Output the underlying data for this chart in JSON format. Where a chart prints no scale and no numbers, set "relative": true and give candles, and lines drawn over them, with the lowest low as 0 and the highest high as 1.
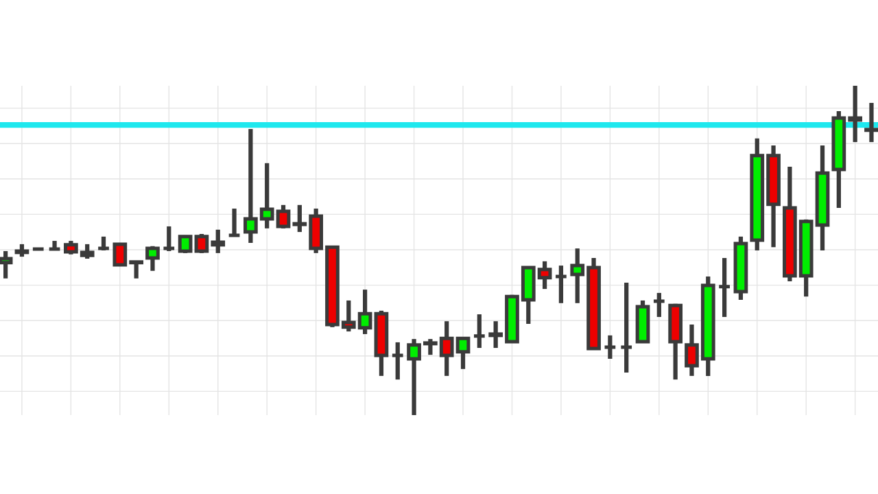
{
  "chart_data": {
    "type": "candlestick",
    "relative": true,
    "grid": true,
    "categories": [
      null,
      null,
      null,
      null,
      null,
      null,
      null,
      null,
      null,
      null,
      null,
      null,
      null,
      null,
      null,
      null,
      null,
      null,
      null,
      null,
      null,
      null,
      null,
      null,
      null,
      null,
      null,
      null,
      null,
      null,
      null,
      null,
      null,
      null,
      null,
      null,
      null,
      null,
      null,
      null,
      null,
      null,
      null,
      null,
      null,
      null,
      null,
      null,
      null,
      null,
      null,
      null,
      null,
      null
    ],
    "ohlc": [
      [
        0.463,
        0.498,
        0.415,
        0.475
      ],
      [
        0.494,
        0.519,
        0.481,
        0.498
      ],
      [
        0.504,
        0.506,
        0.502,
        0.504
      ],
      [
        0.504,
        0.529,
        0.5,
        0.504
      ],
      [
        0.517,
        0.529,
        0.488,
        0.496
      ],
      [
        0.485,
        0.519,
        0.475,
        0.494
      ],
      [
        0.506,
        0.542,
        0.5,
        0.506
      ],
      [
        0.519,
        0.523,
        0.452,
        0.456
      ],
      [
        0.465,
        0.467,
        0.415,
        0.463
      ],
      [
        0.477,
        0.513,
        0.438,
        0.506
      ],
      [
        0.506,
        0.573,
        0.498,
        0.506
      ],
      [
        0.498,
        0.546,
        0.492,
        0.542
      ],
      [
        0.542,
        0.55,
        0.492,
        0.498
      ],
      [
        0.517,
        0.563,
        0.492,
        0.525
      ],
      [
        0.546,
        0.627,
        0.542,
        0.546
      ],
      [
        0.556,
        0.869,
        0.523,
        0.596
      ],
      [
        0.596,
        0.765,
        0.567,
        0.625
      ],
      [
        0.619,
        0.638,
        0.567,
        0.573
      ],
      [
        0.581,
        0.638,
        0.556,
        0.579
      ],
      [
        0.604,
        0.627,
        0.492,
        0.506
      ],
      [
        0.51,
        0.513,
        0.267,
        0.275
      ],
      [
        0.281,
        0.348,
        0.254,
        0.267
      ],
      [
        0.265,
        0.381,
        0.246,
        0.308
      ],
      [
        0.308,
        0.317,
        0.119,
        0.181
      ],
      [
        0.181,
        0.221,
        0.108,
        0.181
      ],
      [
        0.171,
        0.231,
        0.0,
        0.213
      ],
      [
        0.217,
        0.231,
        0.183,
        0.219
      ],
      [
        0.233,
        0.285,
        0.119,
        0.181
      ],
      [
        0.192,
        0.235,
        0.14,
        0.233
      ],
      [
        0.24,
        0.306,
        0.204,
        0.24
      ],
      [
        0.246,
        0.285,
        0.204,
        0.242
      ],
      [
        0.223,
        0.365,
        0.219,
        0.36
      ],
      [
        0.35,
        0.452,
        0.277,
        0.448
      ],
      [
        0.442,
        0.467,
        0.383,
        0.417
      ],
      [
        0.421,
        0.454,
        0.34,
        0.421
      ],
      [
        0.427,
        0.506,
        0.34,
        0.454
      ],
      [
        0.448,
        0.477,
        0.198,
        0.202
      ],
      [
        0.206,
        0.242,
        0.171,
        0.206
      ],
      [
        0.206,
        0.402,
        0.129,
        0.206
      ],
      [
        0.223,
        0.348,
        0.219,
        0.329
      ],
      [
        0.346,
        0.371,
        0.298,
        0.346
      ],
      [
        0.333,
        0.338,
        0.108,
        0.223
      ],
      [
        0.213,
        0.275,
        0.119,
        0.15
      ],
      [
        0.171,
        0.421,
        0.119,
        0.394
      ],
      [
        0.39,
        0.477,
        0.298,
        0.39
      ],
      [
        0.375,
        0.542,
        0.35,
        0.521
      ],
      [
        0.531,
        0.84,
        0.5,
        0.788
      ],
      [
        0.788,
        0.819,
        0.51,
        0.64
      ],
      [
        0.629,
        0.754,
        0.406,
        0.423
      ],
      [
        0.423,
        0.594,
        0.36,
        0.588
      ],
      [
        0.577,
        0.819,
        0.5,
        0.735
      ],
      [
        0.746,
        0.923,
        0.629,
        0.902
      ],
      [
        0.902,
        1.0,
        0.829,
        0.896
      ],
      [
        0.867,
        0.948,
        0.829,
        0.865
      ]
    ],
    "colors": [
      "#00ee00",
      "#00ee00",
      "#3a3a3a",
      "#3a3a3a",
      "#ee0000",
      "#00ee00",
      "#3a3a3a",
      "#ee0000",
      "#ee0000",
      "#00ee00",
      "#3a3a3a",
      "#00ee00",
      "#ee0000",
      "#00ee00",
      "#3a3a3a",
      "#00ee00",
      "#00ee00",
      "#ee0000",
      "#ee0000",
      "#ee0000",
      "#ee0000",
      "#ee0000",
      "#00ee00",
      "#ee0000",
      "#3a3a3a",
      "#00ee00",
      "#00ee00",
      "#ee0000",
      "#00ee00",
      "#3a3a3a",
      "#ee0000",
      "#00ee00",
      "#00ee00",
      "#ee0000",
      "#3a3a3a",
      "#00ee00",
      "#ee0000",
      "#3a3a3a",
      "#3a3a3a",
      "#00ee00",
      "#3a3a3a",
      "#ee0000",
      "#ee0000",
      "#00ee00",
      "#3a3a3a",
      "#00ee00",
      "#00ee00",
      "#ee0000",
      "#ee0000",
      "#00ee00",
      "#00ee00",
      "#00ee00",
      "#ee0000",
      "#ee0000"
    ],
    "ref_lines": [
      {
        "axis": "y",
        "value": 0.881,
        "color": "#1ee8ee"
      }
    ]
  }
}
